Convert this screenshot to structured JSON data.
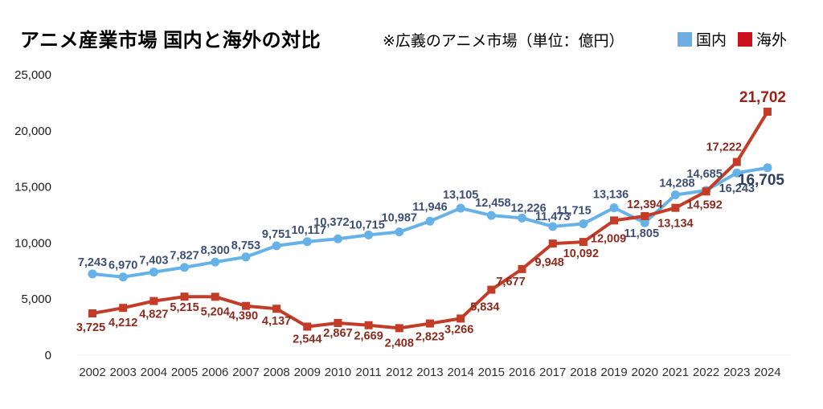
{
  "header": {
    "title": "アニメ産業市場 国内と海外の対比",
    "subtitle": "※広義のアニメ市場（単位：億円）",
    "legend": [
      {
        "label": "国内",
        "color": "#6FAEE3"
      },
      {
        "label": "海外",
        "color": "#C9121B"
      }
    ]
  },
  "chart_data": {
    "type": "line",
    "title": "アニメ産業市場 国内と海外の対比",
    "subtitle": "※広義のアニメ市場（単位：億円）",
    "unit": "億円",
    "x": [
      2002,
      2003,
      2004,
      2005,
      2006,
      2007,
      2008,
      2009,
      2010,
      2011,
      2012,
      2013,
      2014,
      2015,
      2016,
      2017,
      2018,
      2019,
      2020,
      2021,
      2022,
      2023,
      2024
    ],
    "series": [
      {
        "name": "国内",
        "marker": "circle",
        "color": "#66B2E8",
        "label_color": "#3C4F76",
        "final_label_color": "#2E3E60",
        "values": [
          7243,
          6970,
          7403,
          7827,
          8300,
          8753,
          9751,
          10117,
          10372,
          10715,
          10987,
          11946,
          13105,
          12458,
          12226,
          11473,
          11715,
          13136,
          11805,
          14288,
          14685,
          16243,
          16705
        ]
      },
      {
        "name": "海外",
        "marker": "square",
        "color": "#C23C28",
        "label_color": "#8C2B1D",
        "final_label_color": "#A01F16",
        "values": [
          3725,
          4212,
          4827,
          5215,
          5204,
          4390,
          4137,
          2544,
          2867,
          2669,
          2408,
          2823,
          3266,
          5834,
          7677,
          9948,
          10092,
          12009,
          12394,
          13134,
          14592,
          17222,
          21702
        ]
      }
    ],
    "ylim": [
      0,
      25000
    ],
    "yticks": [
      0,
      5000,
      10000,
      15000,
      20000,
      25000
    ],
    "xlabel": "",
    "ylabel": "",
    "grid": false,
    "legend_position": "top-right"
  }
}
